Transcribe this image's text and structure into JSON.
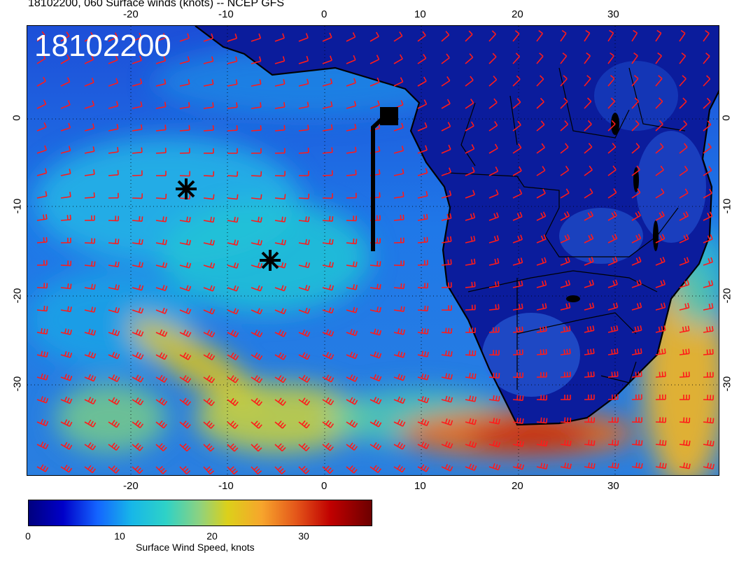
{
  "header": {
    "title": "18102200, 060 Surface winds (knots) -- NCEP GFS"
  },
  "stamp": {
    "text": "18102200"
  },
  "axes": {
    "top_lon_labels": [
      "-20",
      "-10",
      "0",
      "10",
      "20",
      "30"
    ],
    "bottom_lon_labels": [
      "-20",
      "-10",
      "0",
      "10",
      "20",
      "30"
    ],
    "left_lat_labels": [
      "0",
      "-10",
      "-20",
      "-30"
    ],
    "right_lat_labels": [
      "0",
      "-10",
      "-20",
      "-30"
    ]
  },
  "markers": [
    {
      "name": "asterisk-marker-1",
      "symbol": "✳"
    },
    {
      "name": "asterisk-marker-2",
      "symbol": "✳"
    },
    {
      "name": "flight-track",
      "symbol": "track"
    }
  ],
  "colorbar": {
    "ticks": [
      "0",
      "10",
      "20",
      "30"
    ],
    "title": "Surface Wind Speed, knots",
    "colors": [
      "#00007f",
      "#0000c8",
      "#1464ff",
      "#17b7e8",
      "#2ed2c7",
      "#8fd27e",
      "#dcd01a",
      "#f7a52c",
      "#e4561a",
      "#c00000",
      "#6d0000"
    ]
  },
  "colors": {
    "barb": "#ff1a1a",
    "land_dark": "#0a1a9a",
    "ocean": "#1f5fe0",
    "coastline": "#000000"
  }
}
